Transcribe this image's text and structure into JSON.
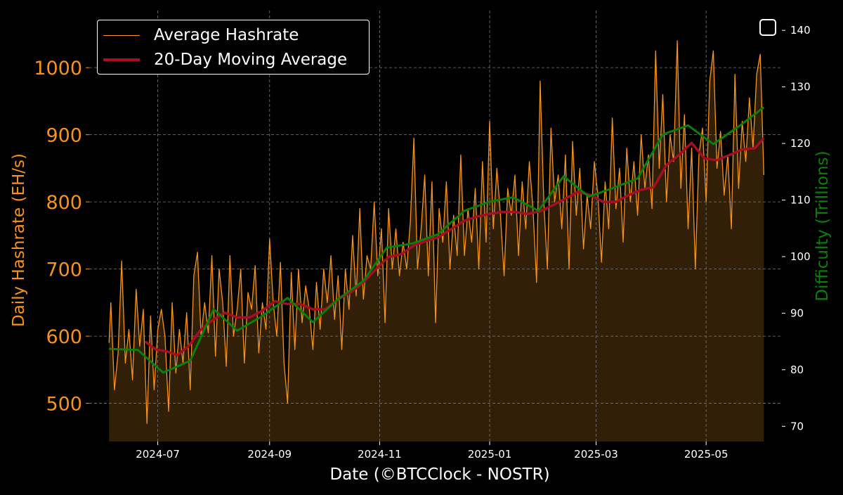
{
  "chart_data": {
    "type": "line",
    "title": "",
    "xlabel": "Date (©BTCClock - NOSTR)",
    "ylabel": "Daily Hashrate (EH/s)",
    "y2label": "Difficulty (Trillions)",
    "x_start": "2024-06-04",
    "x_end": "2025-06-02",
    "xlim": [
      "2024-05-24",
      "2025-06-12"
    ],
    "xticks": [
      "2024-07",
      "2024-09",
      "2024-11",
      "2025-01",
      "2025-03",
      "2025-05"
    ],
    "ylim": [
      443,
      1085
    ],
    "yticks": [
      500,
      600,
      700,
      800,
      900,
      1000
    ],
    "y2lim": [
      67.3,
      143.5
    ],
    "y2ticks": [
      70,
      80,
      90,
      100,
      110,
      120,
      130,
      140
    ],
    "grid": true,
    "legend_position": "top-left",
    "colors": {
      "hashrate": "#f7931a",
      "fill": "#3a2508",
      "moving_average": "#a50e24",
      "difficulty": "#0a7f0a",
      "grid": "#7a7a7a",
      "axis_text": "#ffffff"
    },
    "series": [
      {
        "name": "Average Hashrate",
        "axis": "left",
        "points": [
          [
            "2024-06-04",
            590
          ],
          [
            "2024-06-05",
            650
          ],
          [
            "2024-06-07",
            520
          ],
          [
            "2024-06-09",
            575
          ],
          [
            "2024-06-11",
            712
          ],
          [
            "2024-06-13",
            560
          ],
          [
            "2024-06-15",
            610
          ],
          [
            "2024-06-17",
            535
          ],
          [
            "2024-06-19",
            670
          ],
          [
            "2024-06-21",
            585
          ],
          [
            "2024-06-23",
            640
          ],
          [
            "2024-06-25",
            470
          ],
          [
            "2024-06-27",
            630
          ],
          [
            "2024-06-29",
            520
          ],
          [
            "2024-07-01",
            610
          ],
          [
            "2024-07-03",
            640
          ],
          [
            "2024-07-05",
            600
          ],
          [
            "2024-07-07",
            488
          ],
          [
            "2024-07-09",
            650
          ],
          [
            "2024-07-11",
            545
          ],
          [
            "2024-07-13",
            610
          ],
          [
            "2024-07-15",
            560
          ],
          [
            "2024-07-17",
            635
          ],
          [
            "2024-07-19",
            520
          ],
          [
            "2024-07-21",
            690
          ],
          [
            "2024-07-23",
            725
          ],
          [
            "2024-07-25",
            600
          ],
          [
            "2024-07-27",
            650
          ],
          [
            "2024-07-29",
            605
          ],
          [
            "2024-07-31",
            720
          ],
          [
            "2024-08-02",
            570
          ],
          [
            "2024-08-04",
            700
          ],
          [
            "2024-08-06",
            650
          ],
          [
            "2024-08-08",
            555
          ],
          [
            "2024-08-10",
            720
          ],
          [
            "2024-08-12",
            600
          ],
          [
            "2024-08-14",
            640
          ],
          [
            "2024-08-16",
            700
          ],
          [
            "2024-08-18",
            560
          ],
          [
            "2024-08-20",
            665
          ],
          [
            "2024-08-22",
            640
          ],
          [
            "2024-08-24",
            705
          ],
          [
            "2024-08-26",
            575
          ],
          [
            "2024-08-28",
            650
          ],
          [
            "2024-08-30",
            610
          ],
          [
            "2024-09-01",
            745
          ],
          [
            "2024-09-03",
            650
          ],
          [
            "2024-09-05",
            600
          ],
          [
            "2024-09-07",
            710
          ],
          [
            "2024-09-09",
            560
          ],
          [
            "2024-09-11",
            500
          ],
          [
            "2024-09-13",
            695
          ],
          [
            "2024-09-15",
            580
          ],
          [
            "2024-09-17",
            700
          ],
          [
            "2024-09-19",
            620
          ],
          [
            "2024-09-21",
            675
          ],
          [
            "2024-09-23",
            640
          ],
          [
            "2024-09-25",
            580
          ],
          [
            "2024-09-27",
            680
          ],
          [
            "2024-09-29",
            610
          ],
          [
            "2024-10-01",
            700
          ],
          [
            "2024-10-03",
            650
          ],
          [
            "2024-10-05",
            720
          ],
          [
            "2024-10-07",
            625
          ],
          [
            "2024-10-09",
            690
          ],
          [
            "2024-10-11",
            580
          ],
          [
            "2024-10-13",
            700
          ],
          [
            "2024-10-15",
            640
          ],
          [
            "2024-10-17",
            750
          ],
          [
            "2024-10-19",
            660
          ],
          [
            "2024-10-21",
            790
          ],
          [
            "2024-10-23",
            655
          ],
          [
            "2024-10-25",
            720
          ],
          [
            "2024-10-27",
            700
          ],
          [
            "2024-10-29",
            800
          ],
          [
            "2024-10-31",
            690
          ],
          [
            "2024-11-02",
            760
          ],
          [
            "2024-11-04",
            620
          ],
          [
            "2024-11-06",
            790
          ],
          [
            "2024-11-08",
            700
          ],
          [
            "2024-11-10",
            760
          ],
          [
            "2024-11-12",
            690
          ],
          [
            "2024-11-14",
            740
          ],
          [
            "2024-11-16",
            700
          ],
          [
            "2024-11-18",
            770
          ],
          [
            "2024-11-20",
            895
          ],
          [
            "2024-11-22",
            700
          ],
          [
            "2024-11-24",
            760
          ],
          [
            "2024-11-26",
            840
          ],
          [
            "2024-11-28",
            690
          ],
          [
            "2024-11-30",
            830
          ],
          [
            "2024-12-02",
            620
          ],
          [
            "2024-12-04",
            790
          ],
          [
            "2024-12-06",
            740
          ],
          [
            "2024-12-08",
            830
          ],
          [
            "2024-12-10",
            700
          ],
          [
            "2024-12-12",
            780
          ],
          [
            "2024-12-14",
            720
          ],
          [
            "2024-12-16",
            870
          ],
          [
            "2024-12-18",
            720
          ],
          [
            "2024-12-20",
            790
          ],
          [
            "2024-12-22",
            740
          ],
          [
            "2024-12-24",
            820
          ],
          [
            "2024-12-26",
            700
          ],
          [
            "2024-12-28",
            860
          ],
          [
            "2024-12-30",
            740
          ],
          [
            "2025-01-01",
            920
          ],
          [
            "2025-01-03",
            760
          ],
          [
            "2025-01-05",
            850
          ],
          [
            "2025-01-07",
            780
          ],
          [
            "2025-01-09",
            690
          ],
          [
            "2025-01-11",
            820
          ],
          [
            "2025-01-13",
            780
          ],
          [
            "2025-01-15",
            840
          ],
          [
            "2025-01-17",
            720
          ],
          [
            "2025-01-19",
            830
          ],
          [
            "2025-01-21",
            760
          ],
          [
            "2025-01-23",
            860
          ],
          [
            "2025-01-25",
            790
          ],
          [
            "2025-01-27",
            680
          ],
          [
            "2025-01-29",
            980
          ],
          [
            "2025-01-31",
            800
          ],
          [
            "2025-02-02",
            700
          ],
          [
            "2025-02-04",
            910
          ],
          [
            "2025-02-06",
            800
          ],
          [
            "2025-02-08",
            840
          ],
          [
            "2025-02-10",
            760
          ],
          [
            "2025-02-12",
            870
          ],
          [
            "2025-02-14",
            700
          ],
          [
            "2025-02-16",
            890
          ],
          [
            "2025-02-18",
            780
          ],
          [
            "2025-02-20",
            850
          ],
          [
            "2025-02-22",
            730
          ],
          [
            "2025-02-24",
            810
          ],
          [
            "2025-02-26",
            760
          ],
          [
            "2025-02-28",
            860
          ],
          [
            "2025-03-02",
            810
          ],
          [
            "2025-03-04",
            710
          ],
          [
            "2025-03-06",
            830
          ],
          [
            "2025-03-08",
            760
          ],
          [
            "2025-03-10",
            925
          ],
          [
            "2025-03-12",
            790
          ],
          [
            "2025-03-14",
            850
          ],
          [
            "2025-03-16",
            740
          ],
          [
            "2025-03-18",
            880
          ],
          [
            "2025-03-20",
            800
          ],
          [
            "2025-03-22",
            860
          ],
          [
            "2025-03-24",
            780
          ],
          [
            "2025-03-26",
            900
          ],
          [
            "2025-03-28",
            820
          ],
          [
            "2025-03-30",
            870
          ],
          [
            "2025-04-01",
            790
          ],
          [
            "2025-04-03",
            1025
          ],
          [
            "2025-04-05",
            850
          ],
          [
            "2025-04-07",
            960
          ],
          [
            "2025-04-09",
            800
          ],
          [
            "2025-04-11",
            900
          ],
          [
            "2025-04-13",
            860
          ],
          [
            "2025-04-15",
            1040
          ],
          [
            "2025-04-17",
            820
          ],
          [
            "2025-04-19",
            930
          ],
          [
            "2025-04-21",
            760
          ],
          [
            "2025-04-23",
            880
          ],
          [
            "2025-04-25",
            700
          ],
          [
            "2025-04-27",
            870
          ],
          [
            "2025-04-29",
            910
          ],
          [
            "2025-05-01",
            800
          ],
          [
            "2025-05-03",
            980
          ],
          [
            "2025-05-05",
            1025
          ],
          [
            "2025-05-07",
            850
          ],
          [
            "2025-05-09",
            905
          ],
          [
            "2025-05-11",
            810
          ],
          [
            "2025-05-13",
            870
          ],
          [
            "2025-05-15",
            760
          ],
          [
            "2025-05-17",
            990
          ],
          [
            "2025-05-19",
            820
          ],
          [
            "2025-05-21",
            920
          ],
          [
            "2025-05-23",
            860
          ],
          [
            "2025-05-25",
            955
          ],
          [
            "2025-05-27",
            880
          ],
          [
            "2025-05-29",
            990
          ],
          [
            "2025-05-31",
            1020
          ],
          [
            "2025-06-02",
            840
          ]
        ]
      },
      {
        "name": "20-Day Moving Average",
        "axis": "left",
        "points": [
          [
            "2024-06-24",
            592
          ],
          [
            "2024-06-30",
            580
          ],
          [
            "2024-07-05",
            578
          ],
          [
            "2024-07-12",
            572
          ],
          [
            "2024-07-18",
            585
          ],
          [
            "2024-07-25",
            610
          ],
          [
            "2024-08-01",
            625
          ],
          [
            "2024-08-07",
            635
          ],
          [
            "2024-08-14",
            628
          ],
          [
            "2024-08-21",
            628
          ],
          [
            "2024-08-28",
            638
          ],
          [
            "2024-09-04",
            652
          ],
          [
            "2024-09-11",
            648
          ],
          [
            "2024-09-18",
            648
          ],
          [
            "2024-09-25",
            640
          ],
          [
            "2024-10-02",
            640
          ],
          [
            "2024-10-09",
            655
          ],
          [
            "2024-10-16",
            665
          ],
          [
            "2024-10-23",
            680
          ],
          [
            "2024-10-30",
            700
          ],
          [
            "2024-11-06",
            718
          ],
          [
            "2024-11-13",
            722
          ],
          [
            "2024-11-20",
            735
          ],
          [
            "2024-11-27",
            742
          ],
          [
            "2024-12-04",
            748
          ],
          [
            "2024-12-11",
            760
          ],
          [
            "2024-12-18",
            772
          ],
          [
            "2024-12-25",
            778
          ],
          [
            "2025-01-01",
            782
          ],
          [
            "2025-01-08",
            785
          ],
          [
            "2025-01-15",
            785
          ],
          [
            "2025-01-22",
            782
          ],
          [
            "2025-01-29",
            786
          ],
          [
            "2025-02-05",
            795
          ],
          [
            "2025-02-12",
            805
          ],
          [
            "2025-02-19",
            815
          ],
          [
            "2025-02-26",
            810
          ],
          [
            "2025-03-05",
            800
          ],
          [
            "2025-03-12",
            800
          ],
          [
            "2025-03-19",
            810
          ],
          [
            "2025-03-26",
            818
          ],
          [
            "2025-04-02",
            822
          ],
          [
            "2025-04-09",
            855
          ],
          [
            "2025-04-16",
            870
          ],
          [
            "2025-04-23",
            888
          ],
          [
            "2025-04-30",
            865
          ],
          [
            "2025-05-07",
            862
          ],
          [
            "2025-05-14",
            870
          ],
          [
            "2025-05-21",
            878
          ],
          [
            "2025-05-28",
            880
          ],
          [
            "2025-06-02",
            895
          ]
        ]
      },
      {
        "name": "Difficulty",
        "axis": "right",
        "points": [
          [
            "2024-06-04",
            83.7
          ],
          [
            "2024-06-20",
            83.5
          ],
          [
            "2024-07-04",
            79.5
          ],
          [
            "2024-07-19",
            81.6
          ],
          [
            "2024-08-01",
            90.7
          ],
          [
            "2024-08-14",
            86.9
          ],
          [
            "2024-08-28",
            89.5
          ],
          [
            "2024-09-11",
            92.7
          ],
          [
            "2024-09-25",
            88.4
          ],
          [
            "2024-10-09",
            92.5
          ],
          [
            "2024-10-23",
            95.7
          ],
          [
            "2024-11-05",
            101.6
          ],
          [
            "2024-11-19",
            102.3
          ],
          [
            "2024-12-03",
            103.9
          ],
          [
            "2024-12-18",
            108.1
          ],
          [
            "2025-01-01",
            109.7
          ],
          [
            "2025-01-14",
            110.5
          ],
          [
            "2025-01-28",
            108.1
          ],
          [
            "2025-02-11",
            114.2
          ],
          [
            "2025-02-25",
            110.6
          ],
          [
            "2025-03-10",
            112.1
          ],
          [
            "2025-03-24",
            113.8
          ],
          [
            "2025-04-07",
            121.6
          ],
          [
            "2025-04-21",
            123.2
          ],
          [
            "2025-05-05",
            119.9
          ],
          [
            "2025-05-19",
            123.0
          ],
          [
            "2025-06-02",
            126.4
          ]
        ]
      }
    ]
  },
  "legend": {
    "items": [
      {
        "label": "Average Hashrate",
        "color": "#f7931a"
      },
      {
        "label": "20-Day Moving Average",
        "color": "#a50e24"
      }
    ]
  },
  "controls": {
    "toggle_icon": "checkbox-icon",
    "toggle_checked": false
  }
}
